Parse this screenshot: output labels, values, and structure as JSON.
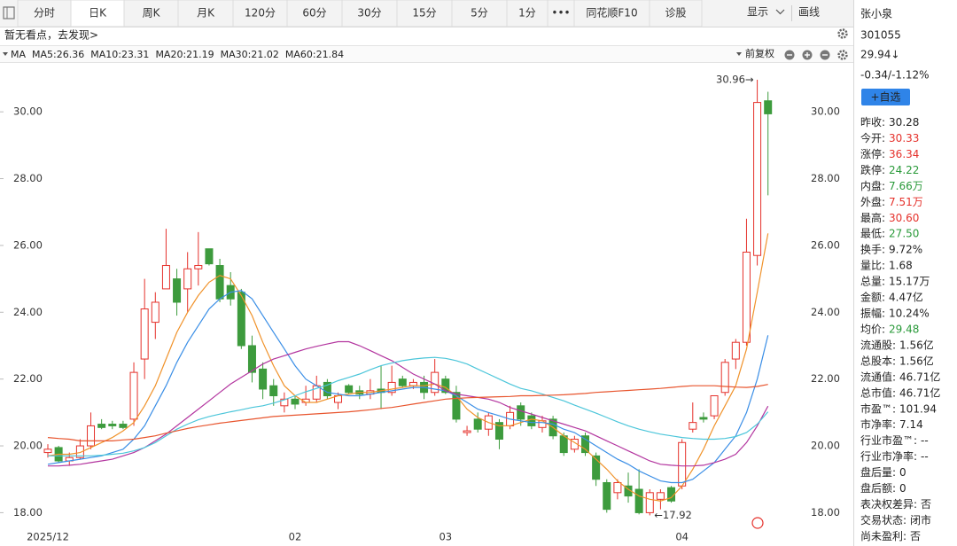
{
  "toolbar": {
    "tabs": [
      "分时",
      "日K",
      "周K",
      "月K",
      "120分",
      "60分",
      "30分",
      "15分",
      "5分",
      "1分",
      "•••",
      "同花顺F10",
      "诊股"
    ],
    "active_tab": 1,
    "right": [
      "显示",
      "画线"
    ]
  },
  "notice": "暂无看点，去发现>",
  "chart_data": {
    "type": "candlestick",
    "indicator": "MA",
    "adjust": "前复权",
    "categories": [
      "2025/12",
      null,
      null,
      null,
      null,
      null,
      null,
      null,
      null,
      null,
      null,
      null,
      null,
      null,
      null,
      null,
      null,
      null,
      null,
      null,
      null,
      null,
      null,
      "02",
      null,
      null,
      null,
      null,
      null,
      null,
      null,
      null,
      null,
      null,
      null,
      null,
      null,
      "03",
      null,
      null,
      null,
      null,
      null,
      null,
      null,
      null,
      null,
      null,
      null,
      null,
      null,
      null,
      null,
      null,
      null,
      null,
      null,
      null,
      null,
      "04",
      null,
      null,
      null,
      null,
      null,
      null,
      null,
      null
    ],
    "open": [
      19.8,
      19.95,
      19.55,
      19.65,
      20.0,
      20.65,
      20.65,
      20.65,
      20.8,
      22.6,
      23.7,
      24.7,
      25.0,
      24.7,
      25.3,
      25.9,
      25.4,
      24.8,
      24.6,
      23.0,
      22.3,
      21.8,
      21.2,
      21.4,
      21.3,
      21.4,
      21.9,
      21.3,
      21.8,
      21.65,
      21.55,
      21.7,
      21.6,
      22.0,
      21.8,
      21.9,
      21.6,
      22.0,
      21.6,
      20.4,
      20.8,
      20.5,
      20.7,
      20.6,
      21.2,
      20.9,
      20.55,
      20.8,
      20.3,
      19.9,
      20.3,
      19.7,
      18.9,
      18.6,
      18.8,
      18.7,
      18.0,
      18.4,
      18.75,
      18.8,
      20.5,
      20.85,
      20.9,
      21.6,
      22.6,
      23.1,
      25.7,
      30.33
    ],
    "high": [
      20.05,
      20.0,
      19.8,
      20.2,
      21.0,
      20.8,
      20.75,
      20.75,
      22.5,
      25.0,
      24.6,
      26.5,
      25.3,
      25.8,
      26.4,
      25.9,
      25.6,
      25.2,
      24.7,
      23.3,
      22.5,
      22.0,
      21.6,
      21.5,
      21.8,
      22.1,
      22.0,
      21.6,
      21.85,
      21.8,
      22.0,
      22.4,
      22.4,
      22.1,
      22.0,
      22.1,
      22.6,
      22.1,
      21.8,
      20.6,
      21.0,
      21.0,
      20.8,
      21.2,
      21.3,
      21.0,
      20.9,
      20.9,
      20.4,
      20.3,
      20.4,
      19.8,
      19.0,
      19.0,
      19.2,
      19.3,
      18.7,
      18.7,
      18.8,
      20.2,
      21.3,
      21.0,
      21.5,
      22.6,
      23.2,
      26.8,
      30.96,
      30.6
    ],
    "low": [
      19.65,
      19.5,
      19.4,
      19.6,
      19.9,
      20.5,
      20.5,
      20.5,
      20.6,
      22.0,
      23.2,
      24.7,
      23.9,
      24.0,
      24.8,
      25.4,
      24.3,
      24.2,
      22.9,
      21.9,
      21.4,
      21.2,
      21.0,
      21.1,
      21.2,
      21.3,
      21.4,
      21.1,
      21.55,
      21.4,
      21.4,
      21.1,
      21.5,
      21.75,
      21.7,
      21.4,
      21.5,
      21.55,
      20.7,
      20.3,
      20.4,
      20.3,
      19.9,
      20.5,
      20.6,
      20.5,
      20.4,
      20.2,
      19.7,
      19.8,
      19.7,
      18.8,
      18.0,
      18.4,
      18.3,
      17.95,
      17.92,
      18.1,
      18.3,
      18.7,
      20.4,
      20.7,
      20.8,
      21.5,
      22.3,
      23.0,
      25.4,
      27.5
    ],
    "close": [
      19.9,
      19.55,
      19.65,
      20.0,
      20.6,
      20.55,
      20.6,
      20.55,
      22.2,
      24.1,
      24.3,
      25.4,
      24.3,
      25.3,
      25.4,
      25.45,
      24.4,
      24.4,
      23.0,
      22.2,
      21.7,
      21.5,
      21.4,
      21.25,
      21.4,
      21.8,
      21.5,
      21.5,
      21.6,
      21.55,
      21.65,
      21.6,
      21.9,
      21.8,
      21.9,
      21.6,
      22.2,
      21.6,
      20.8,
      20.45,
      20.5,
      20.9,
      20.2,
      21.0,
      20.8,
      20.6,
      20.75,
      20.3,
      19.8,
      20.2,
      19.8,
      19.0,
      18.1,
      18.9,
      18.5,
      18.0,
      18.6,
      18.6,
      18.35,
      20.1,
      20.7,
      20.8,
      21.5,
      22.5,
      23.1,
      25.8,
      30.28,
      29.94
    ],
    "up_color": "#e5312b",
    "down_color": "#3d9b3d",
    "series": [
      {
        "name": "MA5:26.36",
        "color": "#f0922a",
        "values": [
          19.7,
          19.75,
          19.75,
          19.8,
          19.95,
          20.1,
          20.25,
          20.45,
          20.7,
          21.2,
          21.8,
          22.6,
          23.4,
          24.0,
          24.5,
          24.9,
          25.1,
          25.0,
          24.5,
          23.9,
          23.1,
          22.4,
          21.8,
          21.5,
          21.3,
          21.3,
          21.4,
          21.5,
          21.55,
          21.6,
          21.6,
          21.65,
          21.7,
          21.75,
          21.8,
          21.8,
          21.85,
          21.75,
          21.5,
          21.1,
          20.85,
          20.7,
          20.6,
          20.6,
          20.7,
          20.8,
          20.75,
          20.55,
          20.3,
          20.1,
          19.9,
          19.6,
          19.3,
          18.95,
          18.7,
          18.5,
          18.4,
          18.35,
          18.45,
          18.8,
          19.3,
          19.9,
          20.6,
          21.2,
          21.8,
          22.9,
          24.6,
          26.36
        ]
      },
      {
        "name": "MA10:23.31",
        "color": "#3a8ee6",
        "values": [
          19.45,
          19.5,
          19.55,
          19.6,
          19.65,
          19.7,
          19.8,
          19.9,
          20.2,
          20.6,
          21.2,
          21.8,
          22.5,
          23.1,
          23.6,
          24.1,
          24.4,
          24.6,
          24.65,
          24.4,
          23.9,
          23.4,
          22.9,
          22.4,
          22.0,
          21.8,
          21.6,
          21.55,
          21.5,
          21.5,
          21.55,
          21.6,
          21.65,
          21.7,
          21.75,
          21.75,
          21.7,
          21.65,
          21.5,
          21.3,
          21.1,
          21.0,
          20.9,
          20.8,
          20.75,
          20.7,
          20.7,
          20.65,
          20.5,
          20.4,
          20.2,
          20.0,
          19.8,
          19.6,
          19.45,
          19.25,
          19.1,
          18.95,
          18.9,
          18.9,
          19.0,
          19.25,
          19.5,
          19.9,
          20.3,
          21.0,
          22.0,
          23.31
        ]
      },
      {
        "name": "MA20:21.19",
        "color": "#b3359f",
        "values": [
          19.4,
          19.4,
          19.42,
          19.45,
          19.5,
          19.55,
          19.6,
          19.7,
          19.8,
          19.95,
          20.15,
          20.35,
          20.6,
          20.85,
          21.1,
          21.35,
          21.6,
          21.85,
          22.05,
          22.25,
          22.45,
          22.6,
          22.7,
          22.8,
          22.9,
          22.98,
          23.05,
          23.12,
          23.12,
          23.0,
          22.85,
          22.7,
          22.55,
          22.35,
          22.15,
          22.0,
          21.85,
          21.65,
          21.55,
          21.5,
          21.45,
          21.4,
          21.3,
          21.15,
          21.05,
          20.95,
          20.85,
          20.75,
          20.65,
          20.55,
          20.45,
          20.3,
          20.15,
          20.0,
          19.85,
          19.7,
          19.55,
          19.45,
          19.42,
          19.4,
          19.4,
          19.42,
          19.5,
          19.6,
          19.75,
          20.1,
          20.6,
          21.19
        ]
      },
      {
        "name": "MA30:21.02",
        "color": "#4cc6da",
        "values": [
          19.7,
          19.7,
          19.7,
          19.7,
          19.7,
          19.72,
          19.75,
          19.78,
          19.85,
          19.95,
          20.1,
          20.3,
          20.5,
          20.65,
          20.78,
          20.88,
          20.95,
          21.02,
          21.08,
          21.15,
          21.2,
          21.28,
          21.38,
          21.5,
          21.62,
          21.72,
          21.82,
          21.95,
          22.05,
          22.15,
          22.28,
          22.4,
          22.48,
          22.55,
          22.6,
          22.63,
          22.65,
          22.62,
          22.55,
          22.45,
          22.3,
          22.15,
          22.0,
          21.85,
          21.72,
          21.65,
          21.55,
          21.45,
          21.35,
          21.22,
          21.1,
          20.98,
          20.85,
          20.72,
          20.6,
          20.5,
          20.42,
          20.35,
          20.3,
          20.25,
          20.22,
          20.2,
          20.2,
          20.22,
          20.28,
          20.4,
          20.65,
          21.02
        ]
      },
      {
        "name": "MA60:21.84",
        "color": "#e8552e",
        "values": [
          20.25,
          20.22,
          20.2,
          20.15,
          20.15,
          20.15,
          20.15,
          20.18,
          20.2,
          20.25,
          20.3,
          20.38,
          20.45,
          20.52,
          20.58,
          20.63,
          20.68,
          20.72,
          20.76,
          20.8,
          20.84,
          20.88,
          20.9,
          20.92,
          20.94,
          20.96,
          20.98,
          21.0,
          21.02,
          21.05,
          21.08,
          21.12,
          21.15,
          21.2,
          21.25,
          21.3,
          21.35,
          21.4,
          21.42,
          21.44,
          21.45,
          21.46,
          21.47,
          21.48,
          21.5,
          21.5,
          21.51,
          21.52,
          21.53,
          21.55,
          21.57,
          21.6,
          21.62,
          21.64,
          21.66,
          21.68,
          21.7,
          21.72,
          21.75,
          21.78,
          21.8,
          21.8,
          21.8,
          21.78,
          21.76,
          21.75,
          21.78,
          21.84
        ]
      }
    ],
    "ylim": [
      17.56,
      31.49
    ],
    "yticks": [
      {
        "value": 18,
        "label": "18.00"
      },
      {
        "value": 20,
        "label": "20.00"
      },
      {
        "value": 22,
        "label": "22.00"
      },
      {
        "value": 24,
        "label": "24.00"
      },
      {
        "value": 26,
        "label": "26.00"
      },
      {
        "value": 28,
        "label": "28.00"
      },
      {
        "value": 30,
        "label": "30.00"
      }
    ],
    "max_label": {
      "value": 30.96,
      "label": "30.96→"
    },
    "min_label": {
      "value": 17.92,
      "label": "←17.92"
    }
  },
  "quote": {
    "name": "张小泉",
    "code": "301055",
    "price": "29.94↓",
    "change": "-0.34/-1.12%",
    "color": "#2a9a3a",
    "button": "+自选",
    "rows": [
      {
        "label": "昨收:",
        "value": "30.28"
      },
      {
        "label": "今开:",
        "value": "30.33",
        "color": "#e5312b"
      },
      {
        "label": "涨停:",
        "value": "36.34",
        "color": "#e5312b"
      },
      {
        "label": "跌停:",
        "value": "24.22",
        "color": "#2a9a3a"
      },
      {
        "label": "内盘:",
        "value": "7.66万",
        "color": "#2a9a3a"
      },
      {
        "label": "外盘:",
        "value": "7.51万",
        "color": "#e5312b"
      },
      {
        "label": "最高:",
        "value": "30.60",
        "color": "#e5312b"
      },
      {
        "label": "最低:",
        "value": "27.50",
        "color": "#2a9a3a"
      },
      {
        "label": "换手:",
        "value": "9.72%"
      },
      {
        "label": "量比:",
        "value": "1.68"
      },
      {
        "label": "总量:",
        "value": "15.17万"
      },
      {
        "label": "金额:",
        "value": "4.47亿"
      },
      {
        "label": "振幅:",
        "value": "10.24%"
      },
      {
        "label": "均价:",
        "value": "29.48",
        "color": "#2a9a3a"
      },
      {
        "label": "流通股:",
        "value": "1.56亿"
      },
      {
        "label": "总股本:",
        "value": "1.56亿"
      },
      {
        "label": "流通值:",
        "value": "46.71亿"
      },
      {
        "label": "总市值:",
        "value": "46.71亿"
      },
      {
        "label": "市盈™:",
        "value": "101.94"
      },
      {
        "label": "市净率:",
        "value": "7.14"
      },
      {
        "label": "行业市盈™:",
        "value": "--"
      },
      {
        "label": "行业市净率:",
        "value": "--"
      },
      {
        "label": "盘后量:",
        "value": "0"
      },
      {
        "label": "盘后额:",
        "value": "0"
      },
      {
        "label": "表决权差异:",
        "value": "否"
      },
      {
        "label": "交易状态:",
        "value": "闭市"
      },
      {
        "label": "尚未盈利:",
        "value": "否"
      }
    ]
  }
}
